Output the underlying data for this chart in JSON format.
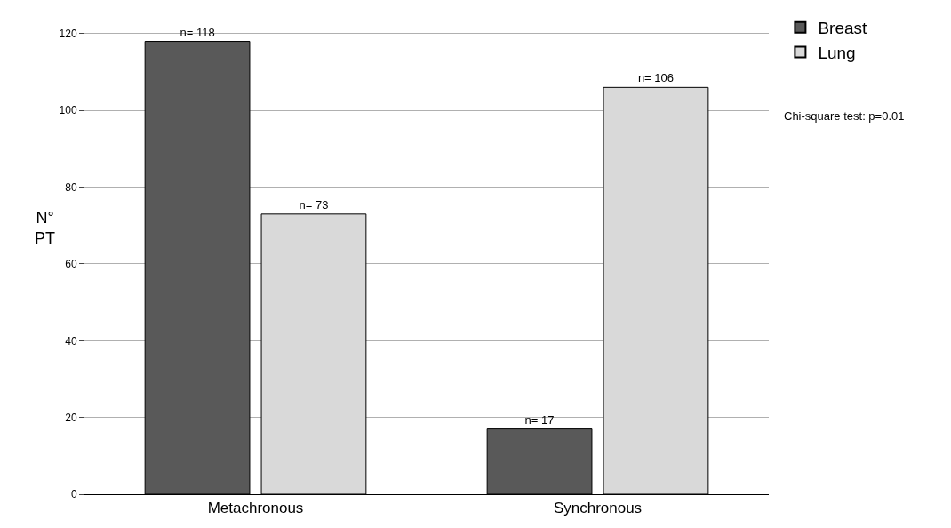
{
  "chart_data": {
    "type": "bar",
    "ylabel": "N°\nPT",
    "categories": [
      "Metachronous",
      "Synchronous"
    ],
    "series": [
      {
        "name": "Breast",
        "color": "#595959",
        "values": [
          118,
          17
        ],
        "value_labels": [
          "n= 118",
          "n= 17"
        ]
      },
      {
        "name": "Lung",
        "color": "#d9d9d9",
        "values": [
          73,
          106
        ],
        "value_labels": [
          "n= 73",
          "n= 106"
        ]
      }
    ],
    "ylim": [
      0,
      126
    ],
    "yticks": [
      0,
      20,
      40,
      60,
      80,
      100,
      120
    ],
    "grid": "y",
    "legend": "top right",
    "annotations": [
      "Chi-square test: p=0.01"
    ]
  }
}
